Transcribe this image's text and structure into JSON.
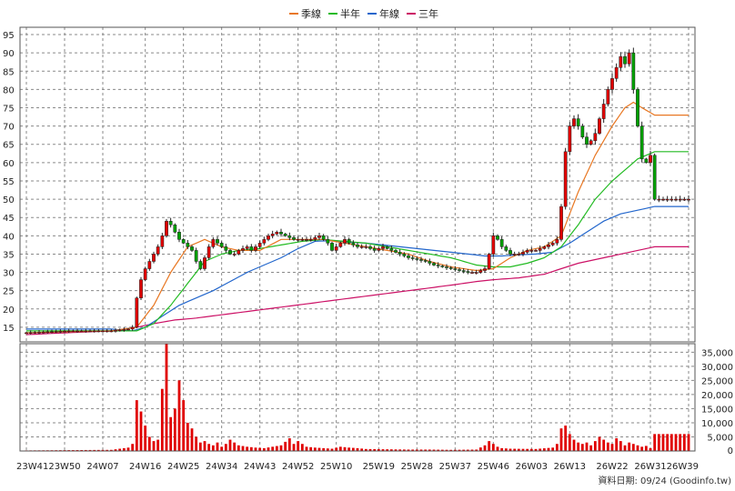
{
  "chart_data": {
    "type": "candlestick",
    "legend_position": "top-center",
    "grid": true,
    "colors": {
      "up": "#e00000",
      "down": "#00a000",
      "volume": "#e00000",
      "ma_quarter": "#e87722",
      "ma_half": "#22bb22",
      "ma_year": "#2266cc",
      "ma_three_year": "#cc1166"
    },
    "legend": [
      {
        "name": "季線",
        "color": "#e87722"
      },
      {
        "name": "半年",
        "color": "#22bb22"
      },
      {
        "name": "年線",
        "color": "#2266cc"
      },
      {
        "name": "三年",
        "color": "#cc1166"
      }
    ],
    "price_axis": {
      "range": [
        11,
        97
      ],
      "ticks": [
        15,
        20,
        25,
        30,
        35,
        40,
        45,
        50,
        55,
        60,
        65,
        70,
        75,
        80,
        85,
        90,
        95
      ]
    },
    "volume_axis": {
      "range": [
        0,
        38000
      ],
      "ticks": [
        5000,
        10000,
        15000,
        20000,
        25000,
        30000,
        35000
      ],
      "tick_labels": [
        "5,000",
        "10,000",
        "15,000",
        "20,000",
        "25,000",
        "30,000",
        "35,000"
      ]
    },
    "x_labels": [
      "23W41",
      "23W50",
      "24W07",
      "24W16",
      "24W25",
      "24W34",
      "24W43",
      "24W52",
      "25W10",
      "25W19",
      "25W28",
      "25W37",
      "25W46",
      "26W03",
      "26W13",
      "26W22",
      "26W31",
      "26W39"
    ],
    "weeks": 157,
    "close_anchors": [
      [
        0,
        13.5
      ],
      [
        10,
        14
      ],
      [
        20,
        14
      ],
      [
        24,
        14.5
      ],
      [
        25,
        15
      ],
      [
        26,
        23
      ],
      [
        27,
        28
      ],
      [
        28,
        31
      ],
      [
        29,
        33
      ],
      [
        30,
        35
      ],
      [
        31,
        37
      ],
      [
        32,
        40
      ],
      [
        33,
        44
      ],
      [
        34,
        43
      ],
      [
        35,
        41
      ],
      [
        36,
        39
      ],
      [
        37,
        38
      ],
      [
        38,
        37
      ],
      [
        39,
        36
      ],
      [
        40,
        33
      ],
      [
        41,
        31
      ],
      [
        42,
        34
      ],
      [
        43,
        37
      ],
      [
        44,
        39
      ],
      [
        45,
        38
      ],
      [
        46,
        37
      ],
      [
        47,
        36
      ],
      [
        48,
        35
      ],
      [
        49,
        35
      ],
      [
        50,
        36
      ],
      [
        52,
        37
      ],
      [
        53,
        36
      ],
      [
        54,
        37
      ],
      [
        55,
        38
      ],
      [
        57,
        40
      ],
      [
        59,
        41
      ],
      [
        61,
        40
      ],
      [
        63,
        39
      ],
      [
        65,
        39
      ],
      [
        67,
        39
      ],
      [
        69,
        40
      ],
      [
        70,
        39
      ],
      [
        71,
        38
      ],
      [
        72,
        36
      ],
      [
        73,
        37
      ],
      [
        74,
        38
      ],
      [
        75,
        39
      ],
      [
        76,
        38
      ],
      [
        78,
        37
      ],
      [
        80,
        37
      ],
      [
        82,
        36
      ],
      [
        84,
        37
      ],
      [
        86,
        36
      ],
      [
        88,
        35
      ],
      [
        90,
        34
      ],
      [
        92,
        33.5
      ],
      [
        94,
        33
      ],
      [
        96,
        32
      ],
      [
        98,
        31.5
      ],
      [
        100,
        31
      ],
      [
        102,
        30.5
      ],
      [
        104,
        30
      ],
      [
        106,
        30
      ],
      [
        108,
        31
      ],
      [
        109,
        35
      ],
      [
        110,
        40
      ],
      [
        111,
        39
      ],
      [
        112,
        37
      ],
      [
        113,
        36
      ],
      [
        114,
        35
      ],
      [
        116,
        35
      ],
      [
        118,
        36
      ],
      [
        120,
        36
      ],
      [
        122,
        37
      ],
      [
        124,
        38
      ],
      [
        125,
        39
      ],
      [
        126,
        48
      ],
      [
        127,
        63
      ],
      [
        128,
        70
      ],
      [
        129,
        72
      ],
      [
        130,
        70
      ],
      [
        131,
        67
      ],
      [
        132,
        65
      ],
      [
        133,
        66
      ],
      [
        134,
        68
      ],
      [
        135,
        72
      ],
      [
        136,
        76
      ],
      [
        137,
        80
      ],
      [
        138,
        83
      ],
      [
        139,
        86
      ],
      [
        140,
        89
      ],
      [
        141,
        87
      ],
      [
        142,
        90
      ],
      [
        143,
        80
      ],
      [
        144,
        70
      ],
      [
        145,
        61
      ],
      [
        146,
        60
      ],
      [
        147,
        62
      ],
      [
        148,
        50
      ]
    ],
    "volume_anchors": [
      [
        0,
        200
      ],
      [
        10,
        300
      ],
      [
        20,
        400
      ],
      [
        24,
        1200
      ],
      [
        25,
        2500
      ],
      [
        26,
        18000
      ],
      [
        27,
        14000
      ],
      [
        28,
        9000
      ],
      [
        29,
        5000
      ],
      [
        30,
        3500
      ],
      [
        31,
        4000
      ],
      [
        32,
        22000
      ],
      [
        33,
        38000
      ],
      [
        34,
        12000
      ],
      [
        35,
        15000
      ],
      [
        36,
        25000
      ],
      [
        37,
        18000
      ],
      [
        38,
        10000
      ],
      [
        39,
        8000
      ],
      [
        40,
        5000
      ],
      [
        41,
        3000
      ],
      [
        42,
        3500
      ],
      [
        43,
        2500
      ],
      [
        44,
        2000
      ],
      [
        45,
        3000
      ],
      [
        46,
        1500
      ],
      [
        47,
        2500
      ],
      [
        48,
        4000
      ],
      [
        49,
        3000
      ],
      [
        50,
        2000
      ],
      [
        52,
        1500
      ],
      [
        54,
        1200
      ],
      [
        56,
        1000
      ],
      [
        58,
        1500
      ],
      [
        60,
        2000
      ],
      [
        62,
        4500
      ],
      [
        63,
        2500
      ],
      [
        64,
        3500
      ],
      [
        65,
        2500
      ],
      [
        66,
        1500
      ],
      [
        68,
        1200
      ],
      [
        70,
        1000
      ],
      [
        72,
        800
      ],
      [
        74,
        1500
      ],
      [
        76,
        1200
      ],
      [
        78,
        1000
      ],
      [
        80,
        700
      ],
      [
        85,
        600
      ],
      [
        90,
        500
      ],
      [
        95,
        500
      ],
      [
        100,
        400
      ],
      [
        106,
        500
      ],
      [
        108,
        2000
      ],
      [
        109,
        3500
      ],
      [
        110,
        2500
      ],
      [
        111,
        1500
      ],
      [
        112,
        1000
      ],
      [
        114,
        800
      ],
      [
        120,
        700
      ],
      [
        124,
        1200
      ],
      [
        125,
        2500
      ],
      [
        126,
        8000
      ],
      [
        127,
        9000
      ],
      [
        128,
        6000
      ],
      [
        129,
        4000
      ],
      [
        130,
        3000
      ],
      [
        131,
        2500
      ],
      [
        132,
        3000
      ],
      [
        133,
        2000
      ],
      [
        134,
        3500
      ],
      [
        135,
        5000
      ],
      [
        136,
        4000
      ],
      [
        137,
        3000
      ],
      [
        138,
        2500
      ],
      [
        139,
        4500
      ],
      [
        140,
        3500
      ],
      [
        141,
        2000
      ],
      [
        142,
        3000
      ],
      [
        143,
        2500
      ],
      [
        144,
        2000
      ],
      [
        145,
        1500
      ],
      [
        146,
        1800
      ],
      [
        147,
        1000
      ],
      [
        148,
        6000
      ]
    ],
    "ma_quarter_anchors": [
      [
        0,
        13.5
      ],
      [
        20,
        14
      ],
      [
        26,
        15
      ],
      [
        30,
        21
      ],
      [
        34,
        30
      ],
      [
        38,
        37
      ],
      [
        42,
        39
      ],
      [
        46,
        37
      ],
      [
        50,
        36
      ],
      [
        55,
        36
      ],
      [
        60,
        39
      ],
      [
        65,
        39
      ],
      [
        70,
        39
      ],
      [
        75,
        38
      ],
      [
        80,
        37
      ],
      [
        85,
        36
      ],
      [
        90,
        35
      ],
      [
        95,
        33
      ],
      [
        100,
        31.5
      ],
      [
        106,
        30.5
      ],
      [
        110,
        31
      ],
      [
        114,
        34
      ],
      [
        118,
        36
      ],
      [
        122,
        37
      ],
      [
        126,
        40
      ],
      [
        130,
        52
      ],
      [
        134,
        62
      ],
      [
        138,
        70
      ],
      [
        141,
        75
      ],
      [
        143,
        76.5
      ],
      [
        145,
        75
      ],
      [
        148,
        73
      ]
    ],
    "ma_half_anchors": [
      [
        0,
        14
      ],
      [
        20,
        14
      ],
      [
        26,
        14
      ],
      [
        30,
        16
      ],
      [
        34,
        21
      ],
      [
        38,
        27
      ],
      [
        42,
        33
      ],
      [
        46,
        35
      ],
      [
        50,
        36
      ],
      [
        55,
        36.5
      ],
      [
        60,
        37.5
      ],
      [
        65,
        38.5
      ],
      [
        70,
        39
      ],
      [
        75,
        38.5
      ],
      [
        80,
        38
      ],
      [
        85,
        37
      ],
      [
        90,
        36
      ],
      [
        95,
        35
      ],
      [
        100,
        34
      ],
      [
        106,
        32
      ],
      [
        110,
        31.5
      ],
      [
        114,
        31.5
      ],
      [
        118,
        32.5
      ],
      [
        122,
        34
      ],
      [
        126,
        37
      ],
      [
        130,
        43
      ],
      [
        134,
        50
      ],
      [
        138,
        55
      ],
      [
        141,
        58
      ],
      [
        144,
        61
      ],
      [
        148,
        63
      ]
    ],
    "ma_year_anchors": [
      [
        0,
        14.5
      ],
      [
        20,
        14.5
      ],
      [
        25,
        14
      ],
      [
        28,
        15
      ],
      [
        32,
        18
      ],
      [
        36,
        21
      ],
      [
        40,
        23
      ],
      [
        44,
        25
      ],
      [
        48,
        27.5
      ],
      [
        52,
        30
      ],
      [
        56,
        32
      ],
      [
        60,
        34
      ],
      [
        64,
        36.5
      ],
      [
        68,
        38.5
      ],
      [
        72,
        38.7
      ],
      [
        76,
        38.3
      ],
      [
        80,
        38
      ],
      [
        84,
        37.5
      ],
      [
        88,
        37
      ],
      [
        92,
        36.5
      ],
      [
        96,
        36
      ],
      [
        100,
        35.5
      ],
      [
        104,
        35
      ],
      [
        108,
        34.5
      ],
      [
        112,
        34.5
      ],
      [
        116,
        34.8
      ],
      [
        120,
        35
      ],
      [
        124,
        35.5
      ],
      [
        128,
        38
      ],
      [
        132,
        41
      ],
      [
        136,
        44
      ],
      [
        140,
        46
      ],
      [
        144,
        47
      ],
      [
        148,
        48
      ]
    ],
    "ma_three_year_anchors": [
      [
        0,
        13
      ],
      [
        10,
        13.5
      ],
      [
        20,
        14
      ],
      [
        26,
        15
      ],
      [
        30,
        16
      ],
      [
        35,
        17
      ],
      [
        40,
        17.5
      ],
      [
        50,
        19
      ],
      [
        60,
        20.5
      ],
      [
        70,
        22
      ],
      [
        80,
        23.5
      ],
      [
        90,
        25
      ],
      [
        100,
        26.5
      ],
      [
        106,
        27.5
      ],
      [
        110,
        28
      ],
      [
        116,
        28.5
      ],
      [
        122,
        29.5
      ],
      [
        126,
        31
      ],
      [
        130,
        32.5
      ],
      [
        134,
        33.5
      ],
      [
        138,
        34.5
      ],
      [
        142,
        35.5
      ],
      [
        146,
        36.5
      ],
      [
        148,
        37
      ]
    ]
  },
  "footer": {
    "source": "資料日期: 09/24  (Goodinfo.tw)"
  }
}
